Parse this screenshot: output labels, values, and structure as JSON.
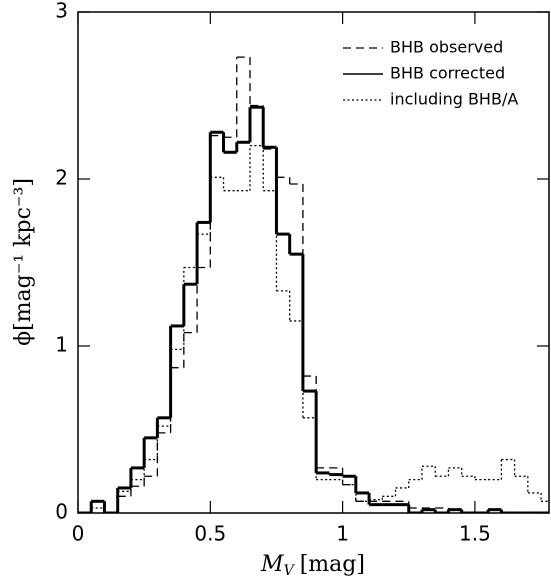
{
  "chart_data": {
    "type": "histogram",
    "xlabel": {
      "symbol": "M",
      "subscript": "V",
      "unit": "[mag]"
    },
    "ylabel": "ϕ[mag⁻¹ kpc⁻³]",
    "bins": [
      0,
      0.05,
      0.1,
      0.15,
      0.2,
      0.25,
      0.3,
      0.35,
      0.4,
      0.45,
      0.5,
      0.55,
      0.6,
      0.65,
      0.7,
      0.75,
      0.8,
      0.85,
      0.9,
      0.95,
      1,
      1.05,
      1.1,
      1.15,
      1.2,
      1.25,
      1.3,
      1.35,
      1.4,
      1.45,
      1.5,
      1.55,
      1.6,
      1.65,
      1.7,
      1.75,
      1.8
    ],
    "series": [
      {
        "name": "BHB observed",
        "color": "#000000",
        "dash": "dashed",
        "values": [
          0,
          0.07,
          0,
          0.1,
          0.16,
          0.22,
          0.48,
          0.87,
          1.08,
          1.47,
          2.26,
          2.25,
          2.73,
          2.44,
          2.18,
          2.01,
          1.97,
          0.82,
          0.27,
          0.27,
          0.17,
          0.07,
          0.07,
          0.07,
          0.07,
          0.03,
          0.03,
          0.03,
          0.02,
          0,
          0,
          0.02,
          0,
          0,
          0,
          0
        ]
      },
      {
        "name": "BHB corrected",
        "color": "#000000",
        "dash": "solid",
        "values": [
          0,
          0.07,
          0,
          0.15,
          0.27,
          0.45,
          0.57,
          1.12,
          1.37,
          1.74,
          2.28,
          2.16,
          2.22,
          2.43,
          2.19,
          1.67,
          1.55,
          0.73,
          0.24,
          0.23,
          0.22,
          0.12,
          0.05,
          0.05,
          0.05,
          0,
          0.02,
          0,
          0.02,
          0,
          0,
          0.02,
          0,
          0,
          0,
          0
        ]
      },
      {
        "name": "including BHB/A",
        "color": "#000000",
        "dash": "dotted",
        "values": [
          0,
          0.03,
          0,
          0.13,
          0.2,
          0.32,
          0.52,
          0.98,
          1.47,
          1.67,
          2.01,
          1.93,
          1.93,
          2.2,
          1.93,
          1.33,
          1.15,
          0.57,
          0.2,
          0.2,
          0.17,
          0.07,
          0.08,
          0.1,
          0.15,
          0.2,
          0.28,
          0.22,
          0.27,
          0.22,
          0.2,
          0.2,
          0.32,
          0.22,
          0.12,
          0.07
        ]
      }
    ],
    "xlim": [
      0,
      1.78
    ],
    "ylim": [
      0,
      3
    ],
    "xticks": [
      0,
      0.5,
      1,
      1.5
    ],
    "yticks": [
      0,
      1,
      2,
      3
    ],
    "legend": "upper right"
  }
}
